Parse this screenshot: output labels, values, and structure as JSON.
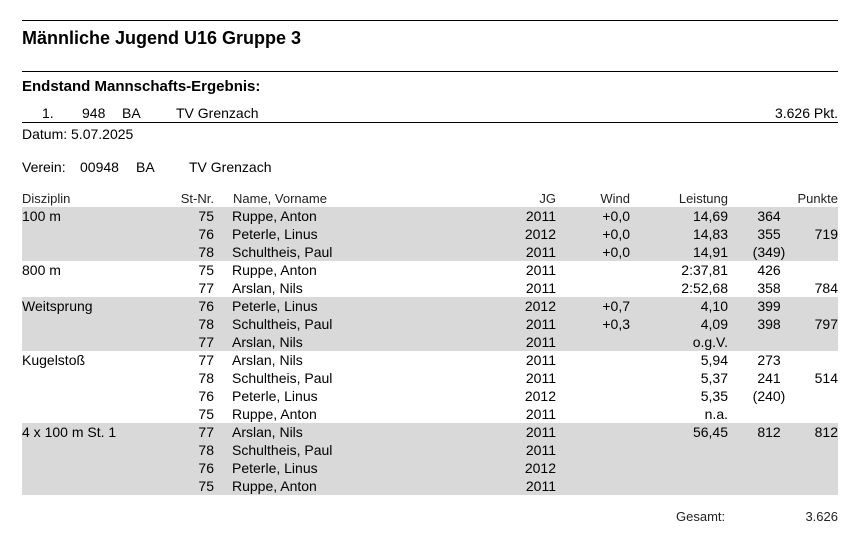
{
  "title": "Männliche Jugend U16 Gruppe 3",
  "section_title": "Endstand Mannschafts-Ergebnis:",
  "standing": {
    "rank": "1.",
    "number": "948",
    "region": "BA",
    "club": "TV Grenzach",
    "points": "3.626 Pkt."
  },
  "date": "Datum: 5.07.2025",
  "club_line": {
    "label": "Verein:",
    "number": "00948",
    "region": "BA",
    "club": "TV Grenzach"
  },
  "headers": {
    "discipline": "Disziplin",
    "stnr": "St-Nr.",
    "name": "Name, Vorname",
    "jg": "JG",
    "wind": "Wind",
    "performance": "Leistung",
    "points": "Punkte"
  },
  "groups": [
    {
      "shaded": true,
      "rows": [
        {
          "discipline": "100 m",
          "stnr": "75",
          "name": "Ruppe, Anton",
          "jg": "2011",
          "wind": "+0,0",
          "performance": "14,69",
          "points": "364",
          "team": ""
        },
        {
          "discipline": "",
          "stnr": "76",
          "name": "Peterle, Linus",
          "jg": "2012",
          "wind": "+0,0",
          "performance": "14,83",
          "points": "355",
          "team": "719"
        },
        {
          "discipline": "",
          "stnr": "78",
          "name": "Schultheis, Paul",
          "jg": "2011",
          "wind": "+0,0",
          "performance": "14,91",
          "points": "(349)",
          "team": ""
        }
      ]
    },
    {
      "shaded": false,
      "rows": [
        {
          "discipline": "800 m",
          "stnr": "75",
          "name": "Ruppe, Anton",
          "jg": "2011",
          "wind": "",
          "performance": "2:37,81",
          "points": "426",
          "team": ""
        },
        {
          "discipline": "",
          "stnr": "77",
          "name": "Arslan, Nils",
          "jg": "2011",
          "wind": "",
          "performance": "2:52,68",
          "points": "358",
          "team": "784"
        }
      ]
    },
    {
      "shaded": true,
      "rows": [
        {
          "discipline": "Weitsprung",
          "stnr": "76",
          "name": "Peterle, Linus",
          "jg": "2012",
          "wind": "+0,7",
          "performance": "4,10",
          "points": "399",
          "team": ""
        },
        {
          "discipline": "",
          "stnr": "78",
          "name": "Schultheis, Paul",
          "jg": "2011",
          "wind": "+0,3",
          "performance": "4,09",
          "points": "398",
          "team": "797"
        },
        {
          "discipline": "",
          "stnr": "77",
          "name": "Arslan, Nils",
          "jg": "2011",
          "wind": "",
          "performance": "o.g.V.",
          "points": "",
          "team": ""
        }
      ]
    },
    {
      "shaded": false,
      "rows": [
        {
          "discipline": "Kugelstoß",
          "stnr": "77",
          "name": "Arslan, Nils",
          "jg": "2011",
          "wind": "",
          "performance": "5,94",
          "points": "273",
          "team": ""
        },
        {
          "discipline": "",
          "stnr": "78",
          "name": "Schultheis, Paul",
          "jg": "2011",
          "wind": "",
          "performance": "5,37",
          "points": "241",
          "team": "514"
        },
        {
          "discipline": "",
          "stnr": "76",
          "name": "Peterle, Linus",
          "jg": "2012",
          "wind": "",
          "performance": "5,35",
          "points": "(240)",
          "team": ""
        },
        {
          "discipline": "",
          "stnr": "75",
          "name": "Ruppe, Anton",
          "jg": "2011",
          "wind": "",
          "performance": "n.a.",
          "points": "",
          "team": ""
        }
      ]
    },
    {
      "shaded": true,
      "rows": [
        {
          "discipline": "4 x 100 m St. 1",
          "stnr": "77",
          "name": "Arslan, Nils",
          "jg": "2011",
          "wind": "",
          "performance": "56,45",
          "points": "812",
          "team": "812"
        },
        {
          "discipline": "",
          "stnr": "78",
          "name": "Schultheis, Paul",
          "jg": "2011",
          "wind": "",
          "performance": "",
          "points": "",
          "team": ""
        },
        {
          "discipline": "",
          "stnr": "76",
          "name": "Peterle, Linus",
          "jg": "2012",
          "wind": "",
          "performance": "",
          "points": "",
          "team": ""
        },
        {
          "discipline": "",
          "stnr": "75",
          "name": "Ruppe, Anton",
          "jg": "2011",
          "wind": "",
          "performance": "",
          "points": "",
          "team": ""
        }
      ]
    }
  ],
  "total": {
    "label": "Gesamt:",
    "value": "3.626"
  }
}
